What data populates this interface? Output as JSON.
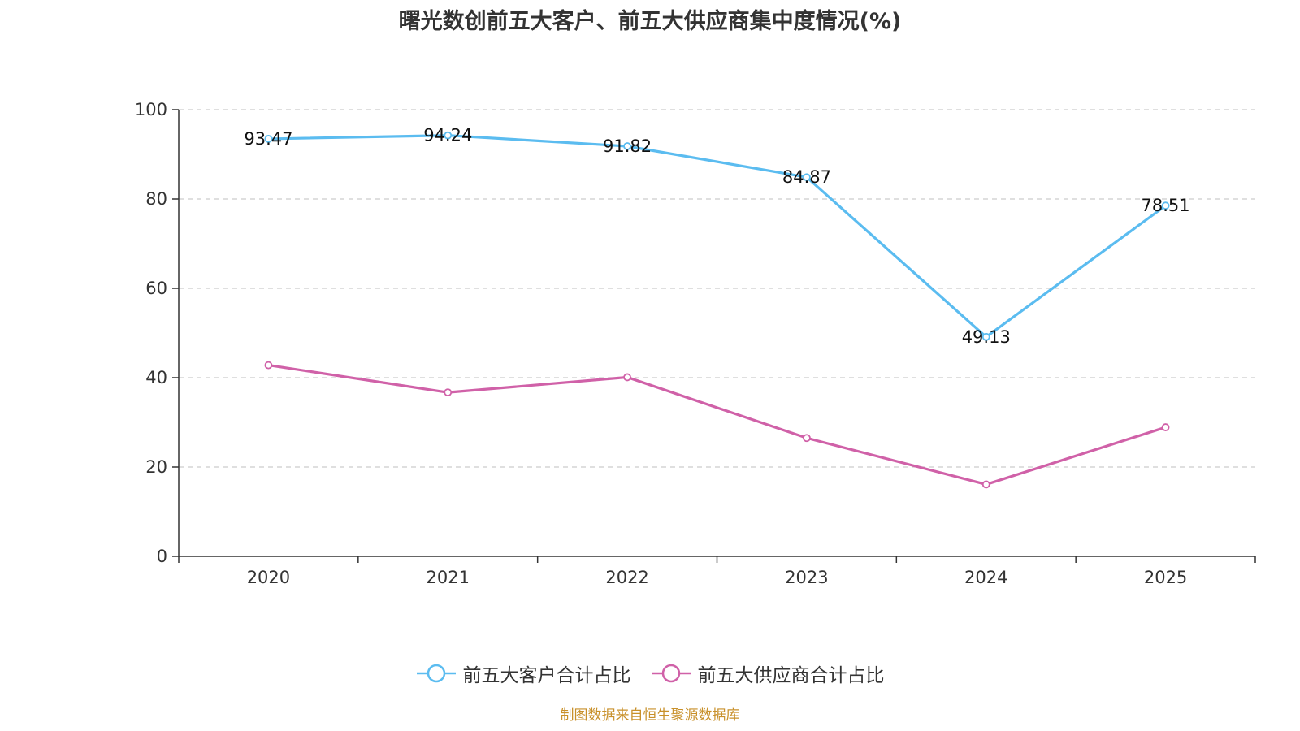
{
  "chart_data": {
    "type": "line",
    "title": "曙光数创前五大客户、前五大供应商集中度情况(%)",
    "categories": [
      "2020",
      "2021",
      "2022",
      "2023",
      "2024",
      "2025"
    ],
    "ylim": [
      0,
      100
    ],
    "yticks": [
      0,
      20,
      40,
      60,
      80,
      100
    ],
    "grid": true,
    "legend_position": "bottom",
    "series": [
      {
        "name": "前五大客户合计占比",
        "color": "#5bbcf0",
        "values": [
          93.47,
          94.24,
          91.82,
          84.87,
          49.13,
          78.51
        ],
        "labels": [
          "93.47",
          "94.24",
          "91.82",
          "84.87",
          "49.13",
          "78.51"
        ],
        "show_labels": true
      },
      {
        "name": "前五大供应商合计占比",
        "color": "#d061a8",
        "values": [
          42.8,
          36.7,
          40.1,
          26.5,
          16.1,
          28.9
        ],
        "show_labels": false
      }
    ]
  },
  "source": "制图数据来自恒生聚源数据库"
}
